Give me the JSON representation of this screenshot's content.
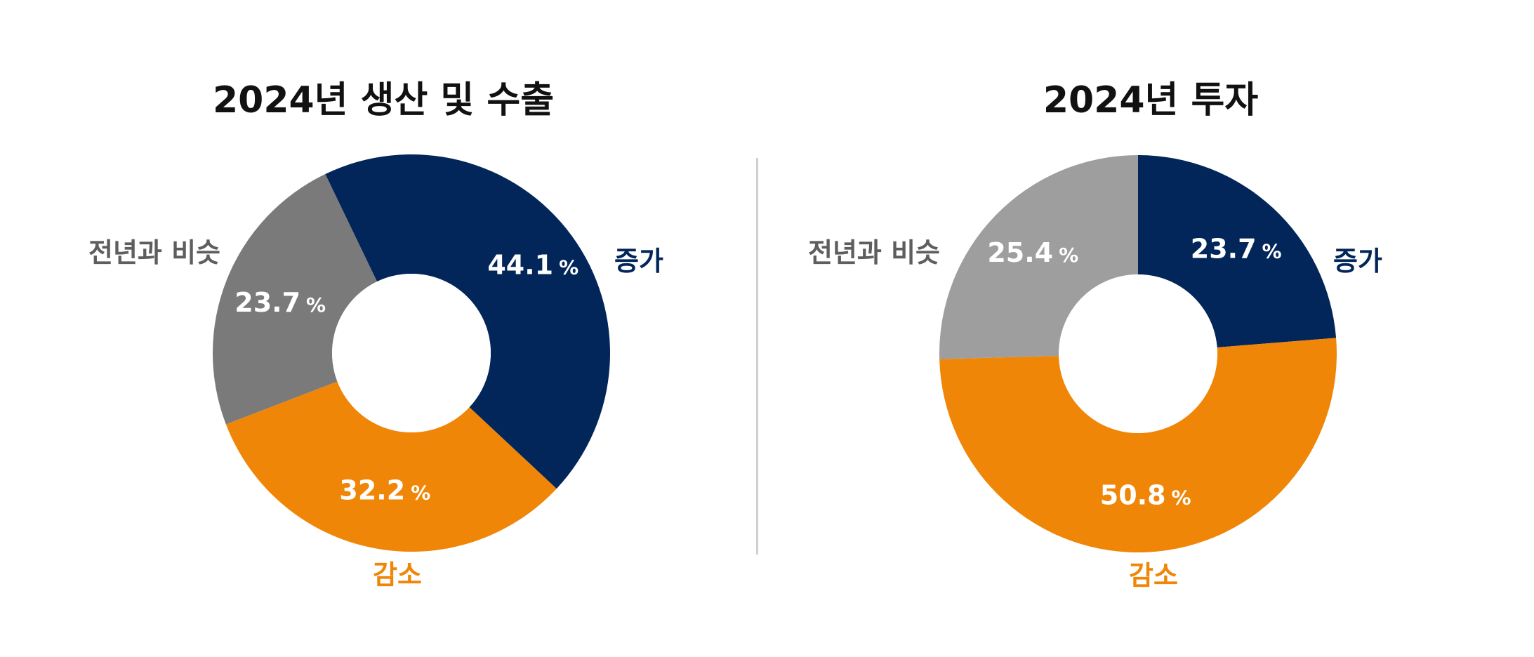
{
  "colors": {
    "increase": "#03265A",
    "decrease": "#F08608",
    "similar_left": "#7A7A7A",
    "similar_right": "#9E9E9E",
    "label_similar": "#5E5E5E"
  },
  "chart_data": [
    {
      "type": "pie",
      "donut": true,
      "title": "2024년 생산 및 수출",
      "unit": "%",
      "slices": [
        {
          "label": "증가",
          "value": 44.1,
          "value_text": "44.1",
          "color": "#03265A"
        },
        {
          "label": "감소",
          "value": 32.2,
          "value_text": "32.2",
          "color": "#F08608"
        },
        {
          "label": "전년과 비슷",
          "value": 23.7,
          "value_text": "23.7",
          "color": "#7A7A7A"
        }
      ]
    },
    {
      "type": "pie",
      "donut": true,
      "title": "2024년 투자",
      "unit": "%",
      "slices": [
        {
          "label": "증가",
          "value": 23.7,
          "value_text": "23.7",
          "color": "#03265A"
        },
        {
          "label": "감소",
          "value": 50.8,
          "value_text": "50.8",
          "color": "#F08608"
        },
        {
          "label": "전년과 비슷",
          "value": 25.4,
          "value_text": "25.4",
          "color": "#9E9E9E"
        }
      ]
    }
  ]
}
